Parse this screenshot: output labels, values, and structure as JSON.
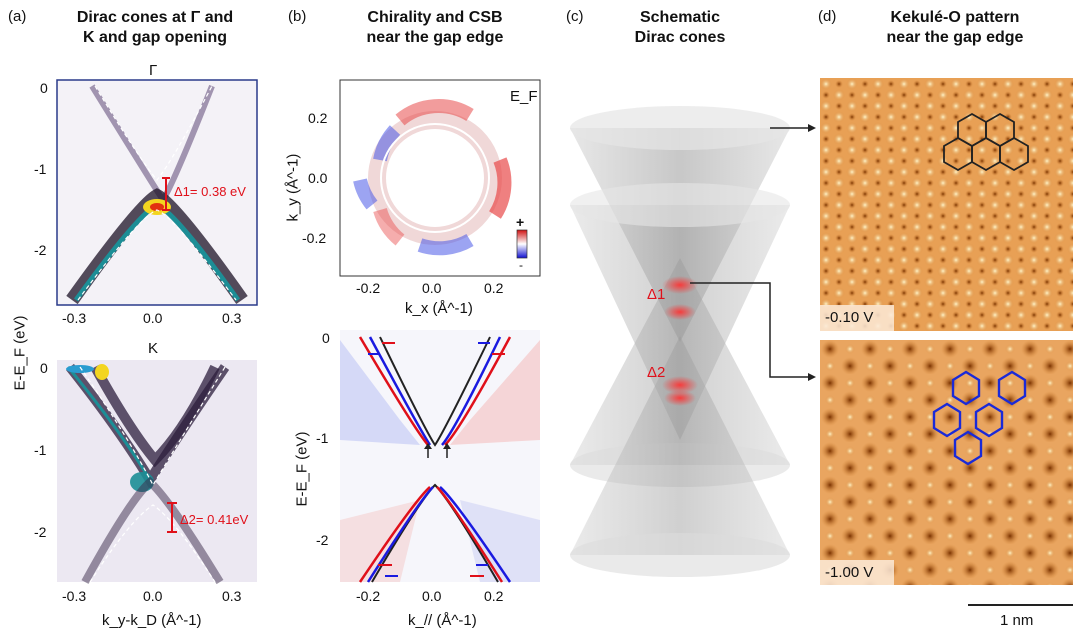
{
  "panel_a": {
    "label": "(a)",
    "title_line1": "Dirac cones at Γ and",
    "title_line2": "K and gap opening",
    "top_point": "Γ",
    "bottom_point": "K",
    "y_ticks_top": [
      "0",
      "-1",
      "-2"
    ],
    "y_ticks_bottom": [
      "0",
      "-1",
      "-2"
    ],
    "x_ticks": [
      "-0.3",
      "0.0",
      "0.3"
    ],
    "y_axis_label": "E-E_F (eV)",
    "x_axis_label": "k_y-k_D (Å^-1)",
    "gap1_label": "Δ1= 0.38 eV",
    "gap2_label": "Δ2= 0.41eV"
  },
  "panel_b": {
    "label": "(b)",
    "title_line1": "Chirality and CSB",
    "title_line2": "near the gap edge",
    "top_tag": "E_F",
    "top_y_ticks": [
      "0.2",
      "0.0",
      "-0.2"
    ],
    "top_x_ticks": [
      "-0.2",
      "0.0",
      "0.2"
    ],
    "top_y_label": "k_y (Å^-1)",
    "top_x_label": "k_x (Å^-1)",
    "colorbar_plus": "+",
    "colorbar_minus": "-",
    "bottom_y_ticks": [
      "0",
      "-1",
      "-2"
    ],
    "bottom_x_ticks": [
      "-0.2",
      "0.0",
      "0.2"
    ],
    "bottom_y_label": "E-E_F (eV)",
    "bottom_x_label": "k_// (Å^-1)"
  },
  "panel_c": {
    "label": "(c)",
    "title_line1": "Schematic",
    "title_line2": "Dirac cones",
    "delta1": "Δ1",
    "delta2": "Δ2"
  },
  "panel_d": {
    "label": "(d)",
    "title_line1": "Kekulé-O pattern",
    "title_line2": "near the gap edge",
    "voltage_top": "-0.10 V",
    "voltage_bottom": "-1.00 V",
    "scale_bar": "1 nm"
  },
  "colors": {
    "arpes_bg": "#3a2a4a",
    "chirality_red": "#e0101a",
    "chirality_blue": "#1a1ae0",
    "stm_orange": "#d98a3a",
    "hex_black": "#222222",
    "hex_blue": "#1a2ad8"
  }
}
